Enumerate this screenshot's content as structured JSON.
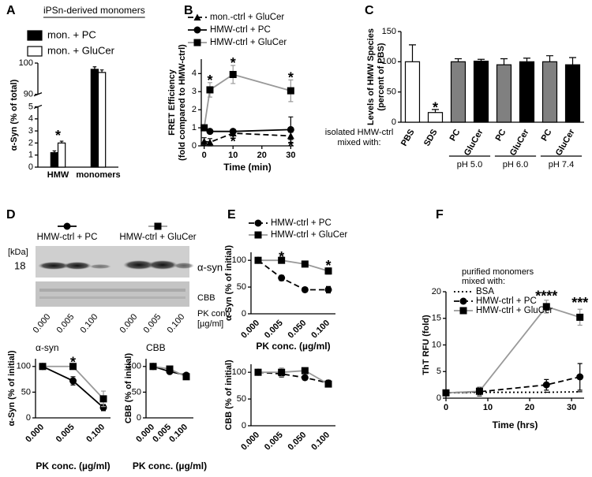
{
  "panel_labels": [
    "A",
    "B",
    "C",
    "D",
    "E",
    "F"
  ],
  "blot": {
    "kda_label": "[kDa]",
    "marker": "18",
    "band_label": "α-syn",
    "stain_label": "CBB",
    "pk_label": [
      "PK conc.",
      "[µg/ml]"
    ],
    "lanes": [
      "0.000",
      "0.005",
      "0.100",
      "0.000",
      "0.005",
      "0.100"
    ]
  },
  "chart_data": [
    {
      "type": "bar",
      "title": "iPSn-derived monomers",
      "categories": [
        "HMW",
        "monomers"
      ],
      "series": [
        {
          "name": "mon. + PC",
          "color": "#000000",
          "values": [
            1.2,
            98
          ],
          "errors": [
            0.15,
            0.8
          ]
        },
        {
          "name": "mon. + GluCer",
          "color": "#ffffff",
          "values": [
            2.0,
            97
          ],
          "errors": [
            0.15,
            0.8
          ]
        }
      ],
      "ylabel": [
        "α-Syn (% of total)"
      ],
      "ylim": [
        0,
        100
      ],
      "axis_break": [
        5,
        90
      ],
      "yticks": [
        0,
        1,
        2,
        3,
        4,
        5,
        90,
        100
      ],
      "annotations": [
        {
          "text": "*",
          "x": 0,
          "y": 2.8
        }
      ]
    },
    {
      "type": "line",
      "x": [
        0,
        2,
        10,
        30
      ],
      "series": [
        {
          "name": "mon.-ctrl + GluCer",
          "color": "#000000",
          "marker": "triangle",
          "linestyle": "dashed",
          "values": [
            0.25,
            0.2,
            0.7,
            0.55
          ],
          "errors": [
            0.2,
            0.2,
            0.1,
            0.2
          ]
        },
        {
          "name": "HMW-ctrl + PC",
          "color": "#000000",
          "marker": "circle",
          "linestyle": "solid",
          "values": [
            1.0,
            0.8,
            0.8,
            0.9
          ],
          "errors": [
            0.05,
            0.1,
            0.1,
            0.7
          ]
        },
        {
          "name": "HMW-ctrl + GluCer",
          "color": "#999999",
          "marker_color": "#000000",
          "marker": "square",
          "linestyle": "solid",
          "values": [
            1.0,
            3.1,
            3.95,
            3.05
          ],
          "errors": [
            0.05,
            0.4,
            0.5,
            0.6
          ]
        }
      ],
      "xlim": [
        -1,
        31
      ],
      "xticks": [
        0,
        10,
        20,
        30
      ],
      "ylim": [
        0,
        4.8
      ],
      "yticks": [
        0,
        1,
        2,
        3,
        4
      ],
      "xlabel": "Time (min)",
      "ylabel": [
        "FRET Efficiency",
        "(fold compared to HMW-ctrl)"
      ],
      "annotations": [
        {
          "text": "*",
          "x": 2,
          "y": 3.75
        },
        {
          "text": "*",
          "x": 10,
          "y": 4.7
        },
        {
          "text": "*",
          "x": 30,
          "y": 3.9
        },
        {
          "text": "*",
          "x": 10,
          "y": 0.35
        },
        {
          "text": "*",
          "x": 30,
          "y": 0.1
        }
      ]
    },
    {
      "type": "bar",
      "categories": [
        "PBS",
        "SDS",
        "PC",
        "GluCer",
        "PC",
        "GluCer",
        "PC",
        "GluCer"
      ],
      "series": [
        {
          "colors": [
            "#ffffff",
            "#ffffff",
            "#808080",
            "#000000",
            "#808080",
            "#000000",
            "#808080",
            "#000000"
          ],
          "values": [
            100,
            16,
            100,
            101,
            95,
            100,
            100,
            95
          ],
          "errors": [
            28,
            5,
            5,
            3,
            10,
            6,
            10,
            12
          ]
        }
      ],
      "ylim": [
        0,
        150
      ],
      "yticks": [
        0,
        50,
        100,
        150
      ],
      "ylabel": [
        "Levels of HMW Species",
        "(percent of PBS)"
      ],
      "row_label": [
        "isolated HMW-ctrl",
        "mixed with:"
      ],
      "groups": [
        {
          "label": "pH 5.0",
          "start": 2,
          "end": 3
        },
        {
          "label": "pH 6.0",
          "start": 4,
          "end": 5
        },
        {
          "label": "pH 7.4",
          "start": 6,
          "end": 7
        }
      ],
      "annotations": [
        {
          "text": "*",
          "x": 1,
          "y": 28
        }
      ]
    },
    {
      "type": "line",
      "title": "α-syn",
      "categories": [
        "0.000",
        "0.005",
        "0.100"
      ],
      "series": [
        {
          "name": "HMW-ctrl + PC",
          "color": "#000000",
          "marker": "circle",
          "linestyle": "solid",
          "values": [
            100,
            72,
            20
          ],
          "errors": [
            2,
            8,
            6
          ]
        },
        {
          "name": "HMW-ctrl + GluCer",
          "color": "#999999",
          "marker_color": "#000000",
          "marker": "square",
          "linestyle": "solid",
          "values": [
            100,
            100,
            37
          ],
          "errors": [
            2,
            4,
            15
          ]
        }
      ],
      "ylim": [
        0,
        115
      ],
      "yticks": [
        0,
        50,
        100
      ],
      "xlabel": "PK conc. (µg/ml)",
      "ylabel": [
        "α-Syn (% of initial)"
      ],
      "annotations": [
        {
          "text": "*",
          "x": 1,
          "y": 112
        }
      ]
    },
    {
      "type": "line",
      "title": "CBB",
      "categories": [
        "0.000",
        "0.005",
        "0.100"
      ],
      "series": [
        {
          "color": "#000000",
          "marker": "circle",
          "linestyle": "solid",
          "values": [
            100,
            90,
            83
          ],
          "errors": [
            2,
            3,
            3
          ]
        },
        {
          "color": "#999999",
          "marker_color": "#000000",
          "marker": "square",
          "linestyle": "solid",
          "values": [
            100,
            95,
            80
          ],
          "errors": [
            2,
            3,
            3
          ]
        }
      ],
      "ylim": [
        0,
        115
      ],
      "yticks": [
        0,
        50,
        100
      ],
      "xlabel": "PK conc. (µg/ml)",
      "ylabel": [
        "CBB (% of initial)"
      ]
    },
    {
      "type": "line",
      "categories": [
        "0.000",
        "0.005",
        "0.050",
        "0.100"
      ],
      "series": [
        {
          "name": "HMW-ctrl + PC",
          "color": "#000000",
          "marker": "circle",
          "linestyle": "dashed",
          "values": [
            100,
            67,
            45,
            45
          ],
          "errors": [
            2,
            5,
            3,
            6
          ]
        },
        {
          "name": "HMW-ctrl + GluCer",
          "color": "#999999",
          "marker_color": "#000000",
          "marker": "square",
          "linestyle": "solid",
          "values": [
            100,
            100,
            93,
            80
          ],
          "errors": [
            2,
            3,
            3,
            6
          ]
        }
      ],
      "ylim": [
        0,
        115
      ],
      "yticks": [
        0,
        50,
        100
      ],
      "xlabel": "PK conc. (µg/ml)",
      "ylabel": [
        "α-Syn (% of initial)"
      ],
      "annotations": [
        {
          "text": "*",
          "x": 1,
          "y": 110
        },
        {
          "text": "*",
          "x": 3,
          "y": 94
        }
      ]
    },
    {
      "type": "line",
      "categories": [
        "0.000",
        "0.005",
        "0.050",
        "0.100"
      ],
      "series": [
        {
          "color": "#000000",
          "marker": "circle",
          "linestyle": "dashed",
          "values": [
            100,
            97,
            90,
            80
          ],
          "errors": [
            3,
            6,
            4,
            5
          ]
        },
        {
          "color": "#999999",
          "marker_color": "#000000",
          "marker": "square",
          "linestyle": "solid",
          "values": [
            100,
            100,
            103,
            78
          ],
          "errors": [
            3,
            8,
            4,
            5
          ]
        }
      ],
      "ylim": [
        0,
        115
      ],
      "yticks": [
        0,
        50,
        100
      ],
      "ylabel": [
        "CBB (% of initial)"
      ]
    },
    {
      "type": "line",
      "x": [
        0,
        8,
        24,
        32
      ],
      "series": [
        {
          "name": "BSA",
          "color": "#000000",
          "marker": "none",
          "linestyle": "dotted",
          "values": [
            1,
            1.1,
            1.1,
            1.2
          ],
          "errors": [
            0,
            0,
            0,
            0
          ]
        },
        {
          "name": "HMW-ctrl + PC",
          "color": "#000000",
          "marker": "circle",
          "linestyle": "dashed",
          "values": [
            1,
            1.2,
            2.5,
            4
          ],
          "errors": [
            0.3,
            0.8,
            1,
            2.5
          ]
        },
        {
          "name": "HMW-ctrl + GluCer",
          "color": "#999999",
          "marker_color": "#000000",
          "marker": "square",
          "linestyle": "solid",
          "values": [
            1,
            1.3,
            17.2,
            15.2
          ],
          "errors": [
            0.3,
            0.8,
            1.2,
            1.5
          ]
        }
      ],
      "xlim": [
        0,
        33
      ],
      "xticks": [
        0,
        10,
        20,
        30
      ],
      "ylim": [
        0,
        20
      ],
      "yticks": [
        0,
        5,
        10,
        15,
        20
      ],
      "xlabel": "Time (hrs)",
      "ylabel": [
        "ThT RFU (fold)"
      ],
      "legend_title": [
        "purified monomers",
        "mixed with:"
      ],
      "annotations": [
        {
          "text": "****",
          "x": 24,
          "y": 19.6
        },
        {
          "text": "***",
          "x": 32,
          "y": 18.3
        }
      ]
    }
  ]
}
